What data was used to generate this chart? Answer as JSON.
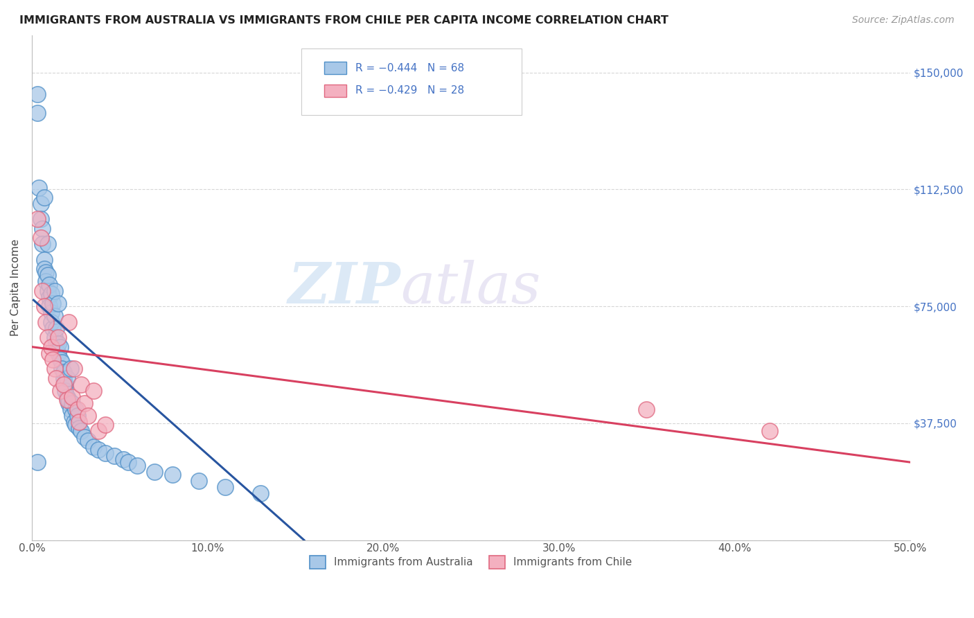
{
  "title": "IMMIGRANTS FROM AUSTRALIA VS IMMIGRANTS FROM CHILE PER CAPITA INCOME CORRELATION CHART",
  "source": "Source: ZipAtlas.com",
  "ylabel": "Per Capita Income",
  "xlim": [
    0.0,
    0.5
  ],
  "ylim": [
    0,
    162000
  ],
  "yticks": [
    0,
    37500,
    75000,
    112500,
    150000
  ],
  "xticks": [
    0.0,
    0.1,
    0.2,
    0.3,
    0.4,
    0.5
  ],
  "xtick_labels": [
    "0.0%",
    "10.0%",
    "20.0%",
    "30.0%",
    "40.0%",
    "50.0%"
  ],
  "ytick_labels": [
    "",
    "$37,500",
    "$75,000",
    "$112,500",
    "$150,000"
  ],
  "color_australia": "#a8c8e8",
  "color_chile": "#f4b0c0",
  "edge_australia": "#5090c8",
  "edge_chile": "#e06880",
  "line_australia": "#2855a0",
  "line_chile": "#d84060",
  "legend_r_australia": "R = −0.444",
  "legend_n_australia": "N = 68",
  "legend_r_chile": "R = −0.429",
  "legend_n_chile": "N = 28",
  "label_australia": "Immigrants from Australia",
  "label_chile": "Immigrants from Chile",
  "watermark_zip": "ZIP",
  "watermark_atlas": "atlas",
  "aus_line_x0": 0.001,
  "aus_line_y0": 77000,
  "aus_line_x1": 0.155,
  "aus_line_y1": 0,
  "chile_line_x0": 0.0,
  "chile_line_y0": 62000,
  "chile_line_x1": 0.5,
  "chile_line_y1": 25000,
  "australia_x": [
    0.003,
    0.003,
    0.004,
    0.005,
    0.005,
    0.006,
    0.006,
    0.007,
    0.007,
    0.007,
    0.008,
    0.008,
    0.009,
    0.009,
    0.009,
    0.01,
    0.01,
    0.01,
    0.011,
    0.011,
    0.011,
    0.012,
    0.012,
    0.013,
    0.013,
    0.013,
    0.014,
    0.014,
    0.015,
    0.015,
    0.015,
    0.016,
    0.016,
    0.017,
    0.017,
    0.018,
    0.018,
    0.019,
    0.019,
    0.02,
    0.02,
    0.021,
    0.021,
    0.022,
    0.022,
    0.023,
    0.023,
    0.024,
    0.025,
    0.025,
    0.026,
    0.027,
    0.028,
    0.03,
    0.032,
    0.035,
    0.038,
    0.042,
    0.047,
    0.052,
    0.055,
    0.06,
    0.07,
    0.08,
    0.095,
    0.11,
    0.13,
    0.003
  ],
  "australia_y": [
    143000,
    137000,
    113000,
    108000,
    103000,
    100000,
    95000,
    90000,
    87000,
    110000,
    86000,
    83000,
    80000,
    95000,
    85000,
    78000,
    82000,
    75000,
    79000,
    73000,
    70000,
    76000,
    68000,
    72000,
    65000,
    80000,
    63000,
    68000,
    60000,
    63000,
    76000,
    62000,
    58000,
    57000,
    55000,
    52000,
    54000,
    50000,
    48000,
    52000,
    46000,
    44000,
    45000,
    55000,
    42000,
    40000,
    44000,
    38000,
    37000,
    42000,
    40000,
    36000,
    35000,
    33000,
    32000,
    30000,
    29000,
    28000,
    27000,
    26000,
    25000,
    24000,
    22000,
    21000,
    19000,
    17000,
    15000,
    25000
  ],
  "chile_x": [
    0.003,
    0.005,
    0.006,
    0.007,
    0.008,
    0.009,
    0.01,
    0.011,
    0.012,
    0.013,
    0.014,
    0.015,
    0.016,
    0.018,
    0.02,
    0.021,
    0.023,
    0.024,
    0.026,
    0.027,
    0.028,
    0.03,
    0.032,
    0.035,
    0.038,
    0.042,
    0.35,
    0.42
  ],
  "chile_y": [
    103000,
    97000,
    80000,
    75000,
    70000,
    65000,
    60000,
    62000,
    58000,
    55000,
    52000,
    65000,
    48000,
    50000,
    45000,
    70000,
    46000,
    55000,
    42000,
    38000,
    50000,
    44000,
    40000,
    48000,
    35000,
    37000,
    42000,
    35000
  ]
}
